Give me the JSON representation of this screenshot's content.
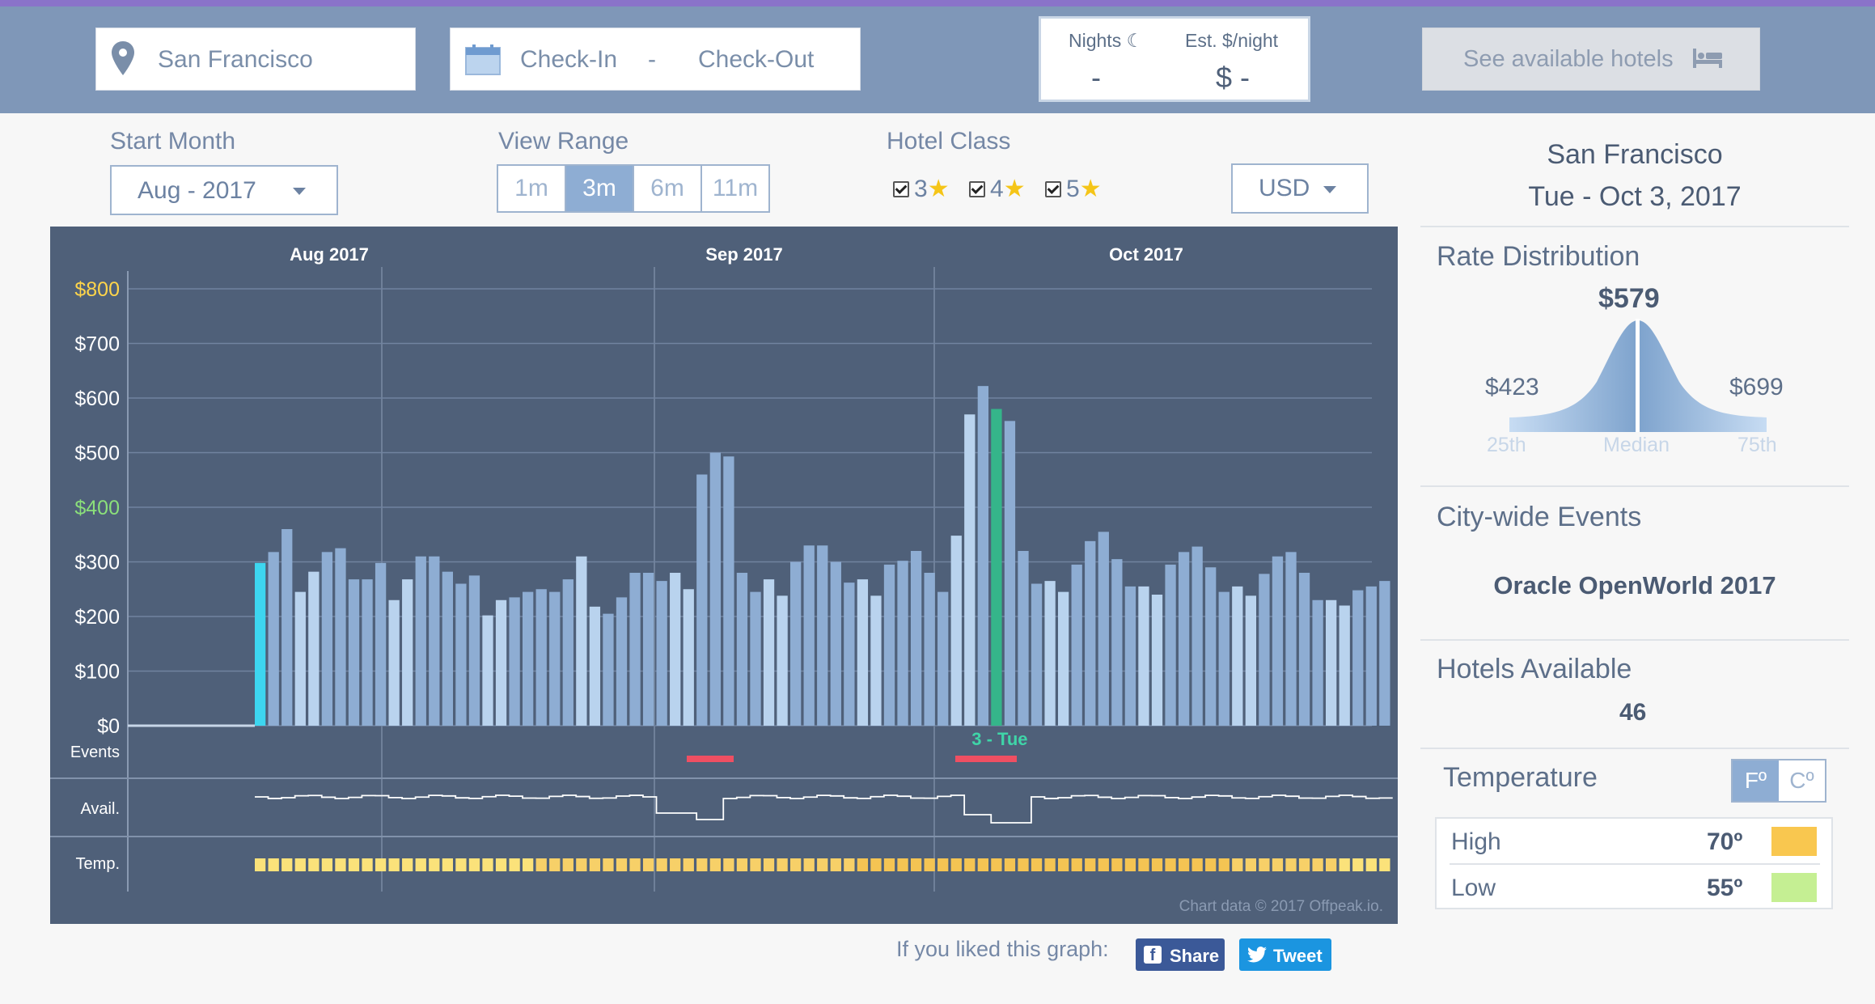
{
  "search": {
    "location": "San Francisco",
    "check_in": "Check-In",
    "date_separator": "-",
    "check_out": "Check-Out",
    "nights_label": "Nights",
    "nights_value": "-",
    "est_label": "Est. $/night",
    "est_value": "$ -",
    "see_button": "See available hotels"
  },
  "controls": {
    "start_month_label": "Start Month",
    "start_month_value": "Aug - 2017",
    "view_range_label": "View Range",
    "ranges": [
      "1m",
      "3m",
      "6m",
      "11m"
    ],
    "active_range": "3m",
    "hotel_class_label": "Hotel Class",
    "classes": [
      "3",
      "4",
      "5"
    ],
    "currency": "USD"
  },
  "chart_data": {
    "type": "bar",
    "x_labels": [
      "Aug 2017",
      "Sep 2017",
      "Oct 2017"
    ],
    "y_ticks": [
      "$0",
      "$100",
      "$200",
      "$300",
      "$400",
      "$500",
      "$600",
      "$700",
      "$800"
    ],
    "ylim": [
      0,
      800
    ],
    "values": [
      298,
      318,
      360,
      245,
      282,
      318,
      325,
      268,
      268,
      298,
      230,
      268,
      310,
      310,
      282,
      260,
      275,
      202,
      230,
      235,
      245,
      250,
      245,
      268,
      310,
      218,
      205,
      235,
      280,
      280,
      265,
      280,
      250,
      460,
      500,
      493,
      280,
      245,
      268,
      238,
      300,
      330,
      330,
      300,
      262,
      268,
      238,
      295,
      302,
      320,
      280,
      245,
      348,
      570,
      622,
      580,
      558,
      320,
      260,
      265,
      245,
      295,
      338,
      355,
      305,
      255,
      255,
      240,
      295,
      318,
      328,
      290,
      245,
      255,
      238,
      278,
      310,
      318,
      280,
      230,
      230,
      220,
      248,
      255,
      265
    ],
    "highlight_first_index": 0,
    "selected_index": 55,
    "selected_label": "3 - Tue",
    "row_labels": [
      "Events",
      "Avail.",
      "Temp."
    ],
    "credit": "Chart data © 2017 Offpeak.io.",
    "colors": {
      "bg": "#4f6079",
      "bar": "#8eadd3",
      "bar_weekend": "#b9d3ee",
      "first": "#3dd6f0",
      "selected": "#35b58a",
      "event": "#ef4f62",
      "temp_a": "#fbe27a",
      "temp_b": "#f4c453",
      "grid_800": "#ffd54a",
      "grid_400": "#8be07a"
    }
  },
  "sidebar": {
    "city": "San Francisco",
    "date": "Tue - Oct 3, 2017",
    "rate_title": "Rate Distribution",
    "median": "$579",
    "p25": "$423",
    "p75": "$699",
    "p25_label": "25th",
    "median_label": "Median",
    "p75_label": "75th",
    "events_title": "City-wide Events",
    "event_name": "Oracle OpenWorld 2017",
    "hotels_title": "Hotels Available",
    "hotels_count": "46",
    "temp_title": "Temperature",
    "unit_f": "Fº",
    "unit_c": "Cº",
    "high_label": "High",
    "high_value": "70º",
    "low_label": "Low",
    "low_value": "55º",
    "high_color": "#f9c74f",
    "low_color": "#c5ef93"
  },
  "footer": {
    "share_prompt": "If you liked this graph:",
    "share_label": "Share",
    "tweet_label": "Tweet"
  }
}
